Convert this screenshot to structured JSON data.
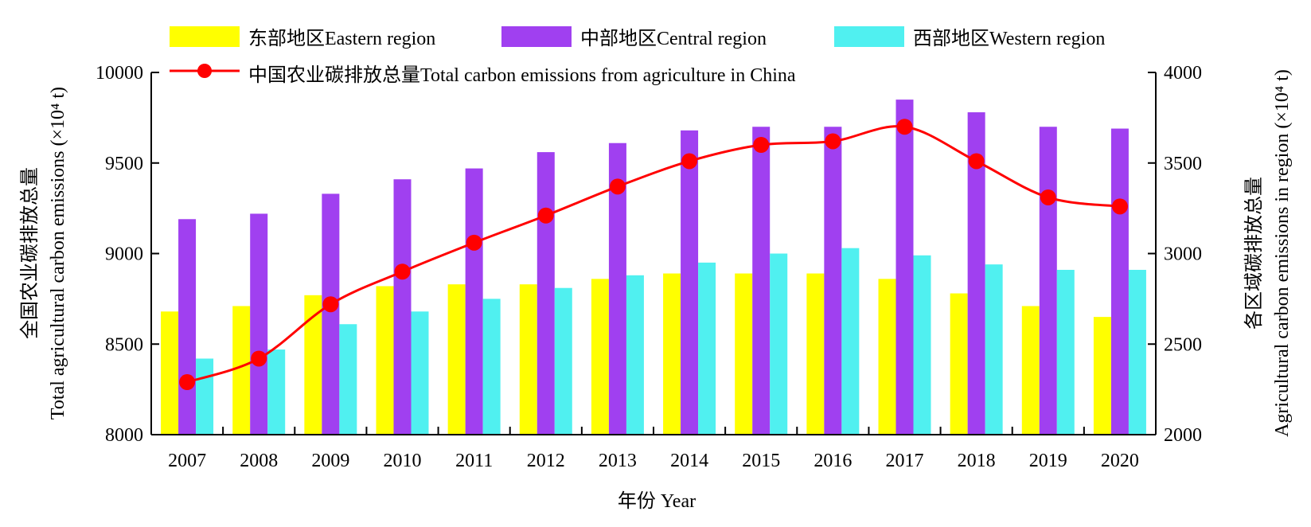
{
  "chart_data": {
    "type": "bar",
    "categories": [
      "2007",
      "2008",
      "2009",
      "2010",
      "2011",
      "2012",
      "2013",
      "2014",
      "2015",
      "2016",
      "2017",
      "2018",
      "2019",
      "2020"
    ],
    "xlabel": "年份 Year",
    "ylabel_left": [
      "全国农业碳排放总量",
      "Total agricultural carbon emissions (×10⁴ t)"
    ],
    "ylabel_right": [
      "各区域碳排放总量",
      "Agricultural carbon emissions in region (×10⁴ t)"
    ],
    "ylim_left": [
      8000,
      10000
    ],
    "yticks_left": [
      "8000",
      "8500",
      "9000",
      "9500",
      "10000"
    ],
    "ylim_right": [
      2000,
      4000
    ],
    "yticks_right": [
      "2000",
      "2500",
      "3000",
      "3500",
      "4000"
    ],
    "grid": false,
    "legend_position": "top",
    "series": [
      {
        "name": "东部地区Eastern region",
        "axis": "right",
        "kind": "bar",
        "color": "#FFFF00",
        "values": [
          2680,
          2710,
          2770,
          2820,
          2830,
          2830,
          2860,
          2890,
          2890,
          2890,
          2860,
          2780,
          2710,
          2650
        ]
      },
      {
        "name": "中部地区Central region",
        "axis": "right",
        "kind": "bar",
        "color": "#A040F0",
        "values": [
          3190,
          3220,
          3330,
          3410,
          3470,
          3560,
          3610,
          3680,
          3700,
          3700,
          3850,
          3780,
          3700,
          3690
        ]
      },
      {
        "name": "西部地区Western region",
        "axis": "right",
        "kind": "bar",
        "color": "#50F0F0",
        "values": [
          2420,
          2470,
          2610,
          2680,
          2750,
          2810,
          2880,
          2950,
          3000,
          3030,
          2990,
          2940,
          2910,
          2910
        ]
      },
      {
        "name": "中国农业碳排放总量Total carbon emissions from agriculture in China",
        "axis": "left",
        "kind": "line",
        "color": "#FF0000",
        "values": [
          8290,
          8420,
          8720,
          8900,
          9060,
          9210,
          9370,
          9510,
          9600,
          9620,
          9700,
          9510,
          9310,
          9260
        ]
      }
    ]
  }
}
